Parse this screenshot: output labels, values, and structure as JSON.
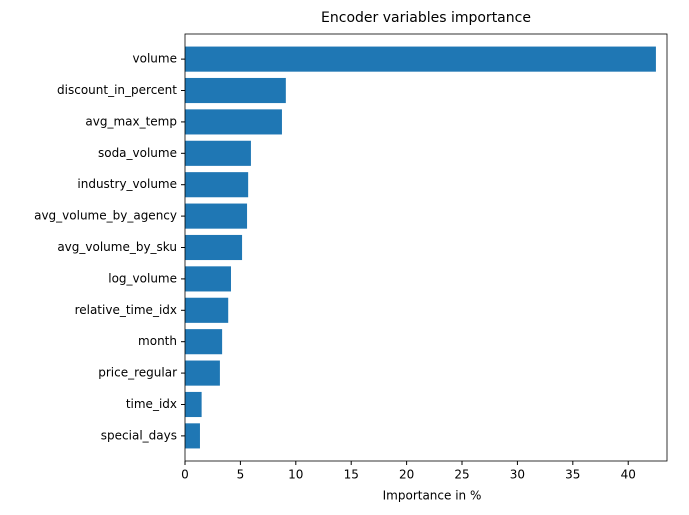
{
  "chart_data": {
    "type": "barh",
    "title": "Encoder variables importance",
    "x_label": "Importance in %",
    "categories": [
      "volume",
      "discount_in_percent",
      "avg_max_temp",
      "soda_volume",
      "industry_volume",
      "avg_volume_by_agency",
      "avg_volume_by_sku",
      "log_volume",
      "relative_time_idx",
      "month",
      "price_regular",
      "time_idx",
      "special_days"
    ],
    "values": [
      42.5,
      9.1,
      8.75,
      5.95,
      5.7,
      5.6,
      5.15,
      4.15,
      3.9,
      3.35,
      3.15,
      1.5,
      1.35
    ],
    "color": "#1f77b4",
    "xlim": [
      0,
      43.5
    ],
    "xticks": [
      0,
      5,
      10,
      15,
      20,
      25,
      30,
      35,
      40
    ],
    "grid": false
  }
}
